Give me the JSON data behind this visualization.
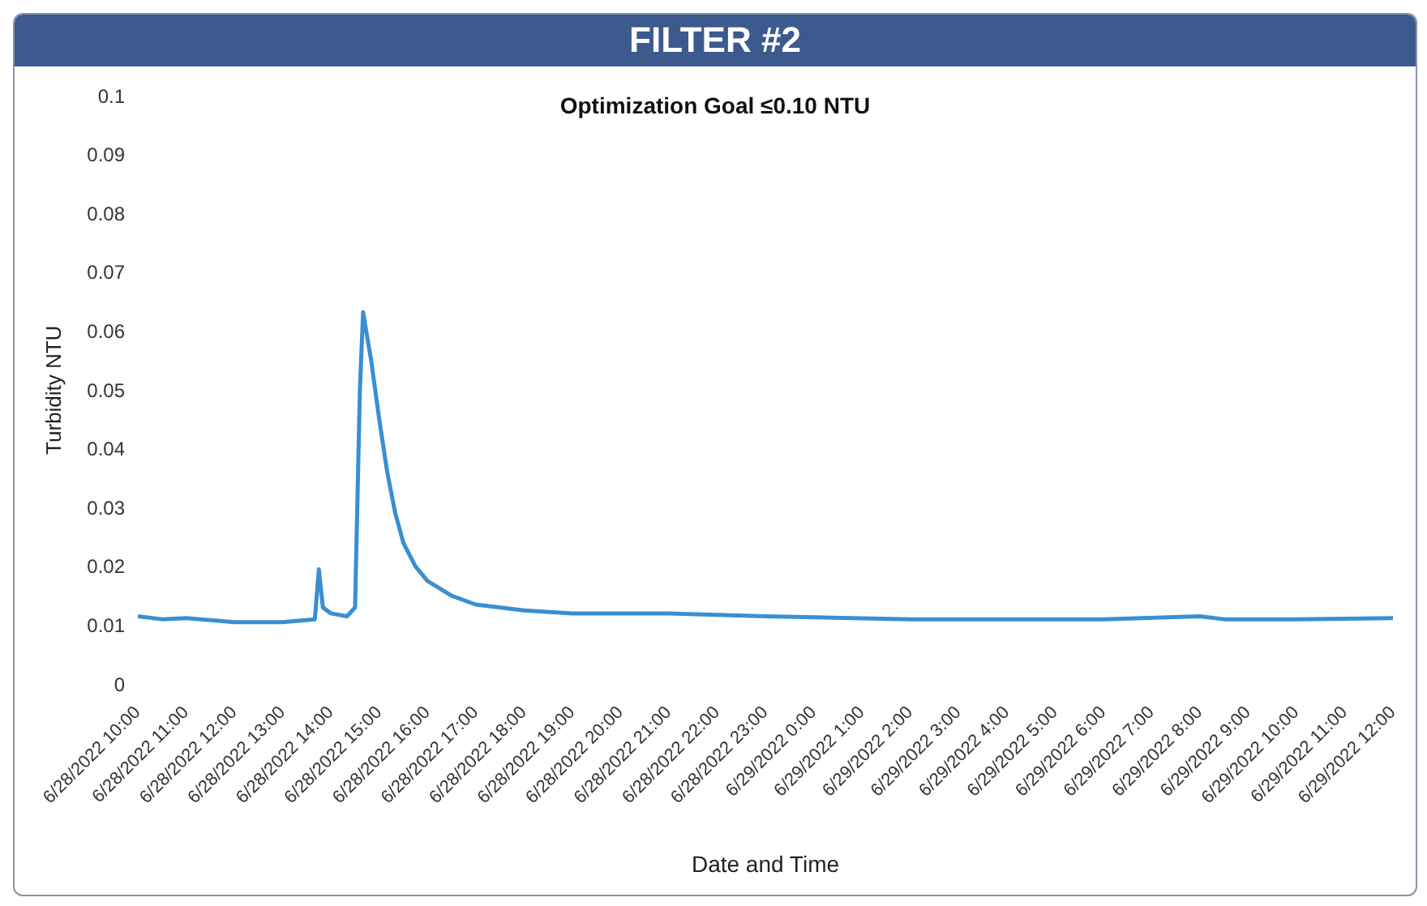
{
  "chart_data": {
    "type": "line",
    "title": "FILTER #2",
    "subtitle": "Optimization Goal ≤0.10 NTU",
    "xlabel": "Date and Time",
    "ylabel": "Turbidity NTU",
    "x": [
      "2022-06-28T10:00",
      "2022-06-28T10:30",
      "2022-06-28T11:00",
      "2022-06-28T12:00",
      "2022-06-28T13:00",
      "2022-06-28T13:40",
      "2022-06-28T13:45",
      "2022-06-28T13:50",
      "2022-06-28T14:00",
      "2022-06-28T14:20",
      "2022-06-28T14:30",
      "2022-06-28T14:36",
      "2022-06-28T14:40",
      "2022-06-28T14:45",
      "2022-06-28T14:50",
      "2022-06-28T15:00",
      "2022-06-28T15:10",
      "2022-06-28T15:20",
      "2022-06-28T15:30",
      "2022-06-28T15:45",
      "2022-06-28T16:00",
      "2022-06-28T16:30",
      "2022-06-28T17:00",
      "2022-06-28T18:00",
      "2022-06-28T19:00",
      "2022-06-28T21:00",
      "2022-06-28T23:00",
      "2022-06-29T02:00",
      "2022-06-29T06:00",
      "2022-06-29T08:00",
      "2022-06-29T08:30",
      "2022-06-29T10:00",
      "2022-06-29T12:00"
    ],
    "series": [
      {
        "color": "#3a8fd0",
        "values": [
          0.0115,
          0.011,
          0.0112,
          0.0105,
          0.0105,
          0.011,
          0.0195,
          0.013,
          0.012,
          0.0115,
          0.013,
          0.05,
          0.0632,
          0.059,
          0.055,
          0.045,
          0.036,
          0.029,
          0.024,
          0.02,
          0.0175,
          0.015,
          0.0135,
          0.0125,
          0.012,
          0.012,
          0.0115,
          0.011,
          0.011,
          0.0115,
          0.011,
          0.011,
          0.0112
        ]
      }
    ],
    "xlim": [
      "2022-06-28T10:00",
      "2022-06-29T12:00"
    ],
    "xticks": [
      {
        "value": "2022-06-28T10:00",
        "label": "6/28/2022 10:00"
      },
      {
        "value": "2022-06-28T11:00",
        "label": "6/28/2022 11:00"
      },
      {
        "value": "2022-06-28T12:00",
        "label": "6/28/2022 12:00"
      },
      {
        "value": "2022-06-28T13:00",
        "label": "6/28/2022 13:00"
      },
      {
        "value": "2022-06-28T14:00",
        "label": "6/28/2022 14:00"
      },
      {
        "value": "2022-06-28T15:00",
        "label": "6/28/2022 15:00"
      },
      {
        "value": "2022-06-28T16:00",
        "label": "6/28/2022 16:00"
      },
      {
        "value": "2022-06-28T17:00",
        "label": "6/28/2022 17:00"
      },
      {
        "value": "2022-06-28T18:00",
        "label": "6/28/2022 18:00"
      },
      {
        "value": "2022-06-28T19:00",
        "label": "6/28/2022 19:00"
      },
      {
        "value": "2022-06-28T20:00",
        "label": "6/28/2022 20:00"
      },
      {
        "value": "2022-06-28T21:00",
        "label": "6/28/2022 21:00"
      },
      {
        "value": "2022-06-28T22:00",
        "label": "6/28/2022 22:00"
      },
      {
        "value": "2022-06-28T23:00",
        "label": "6/28/2022 23:00"
      },
      {
        "value": "2022-06-29T00:00",
        "label": "6/29/2022 0:00"
      },
      {
        "value": "2022-06-29T01:00",
        "label": "6/29/2022 1:00"
      },
      {
        "value": "2022-06-29T02:00",
        "label": "6/29/2022 2:00"
      },
      {
        "value": "2022-06-29T03:00",
        "label": "6/29/2022 3:00"
      },
      {
        "value": "2022-06-29T04:00",
        "label": "6/29/2022 4:00"
      },
      {
        "value": "2022-06-29T05:00",
        "label": "6/29/2022 5:00"
      },
      {
        "value": "2022-06-29T06:00",
        "label": "6/29/2022 6:00"
      },
      {
        "value": "2022-06-29T07:00",
        "label": "6/29/2022 7:00"
      },
      {
        "value": "2022-06-29T08:00",
        "label": "6/29/2022 8:00"
      },
      {
        "value": "2022-06-29T09:00",
        "label": "6/29/2022 9:00"
      },
      {
        "value": "2022-06-29T10:00",
        "label": "6/29/2022 10:00"
      },
      {
        "value": "2022-06-29T11:00",
        "label": "6/29/2022 11:00"
      },
      {
        "value": "2022-06-29T12:00",
        "label": "6/29/2022 12:00"
      }
    ],
    "ylim": [
      0,
      0.1
    ],
    "yticks": [
      0,
      0.01,
      0.02,
      0.03,
      0.04,
      0.05,
      0.06,
      0.07,
      0.08,
      0.09,
      0.1
    ],
    "marker": "none",
    "line_style": "solid"
  }
}
